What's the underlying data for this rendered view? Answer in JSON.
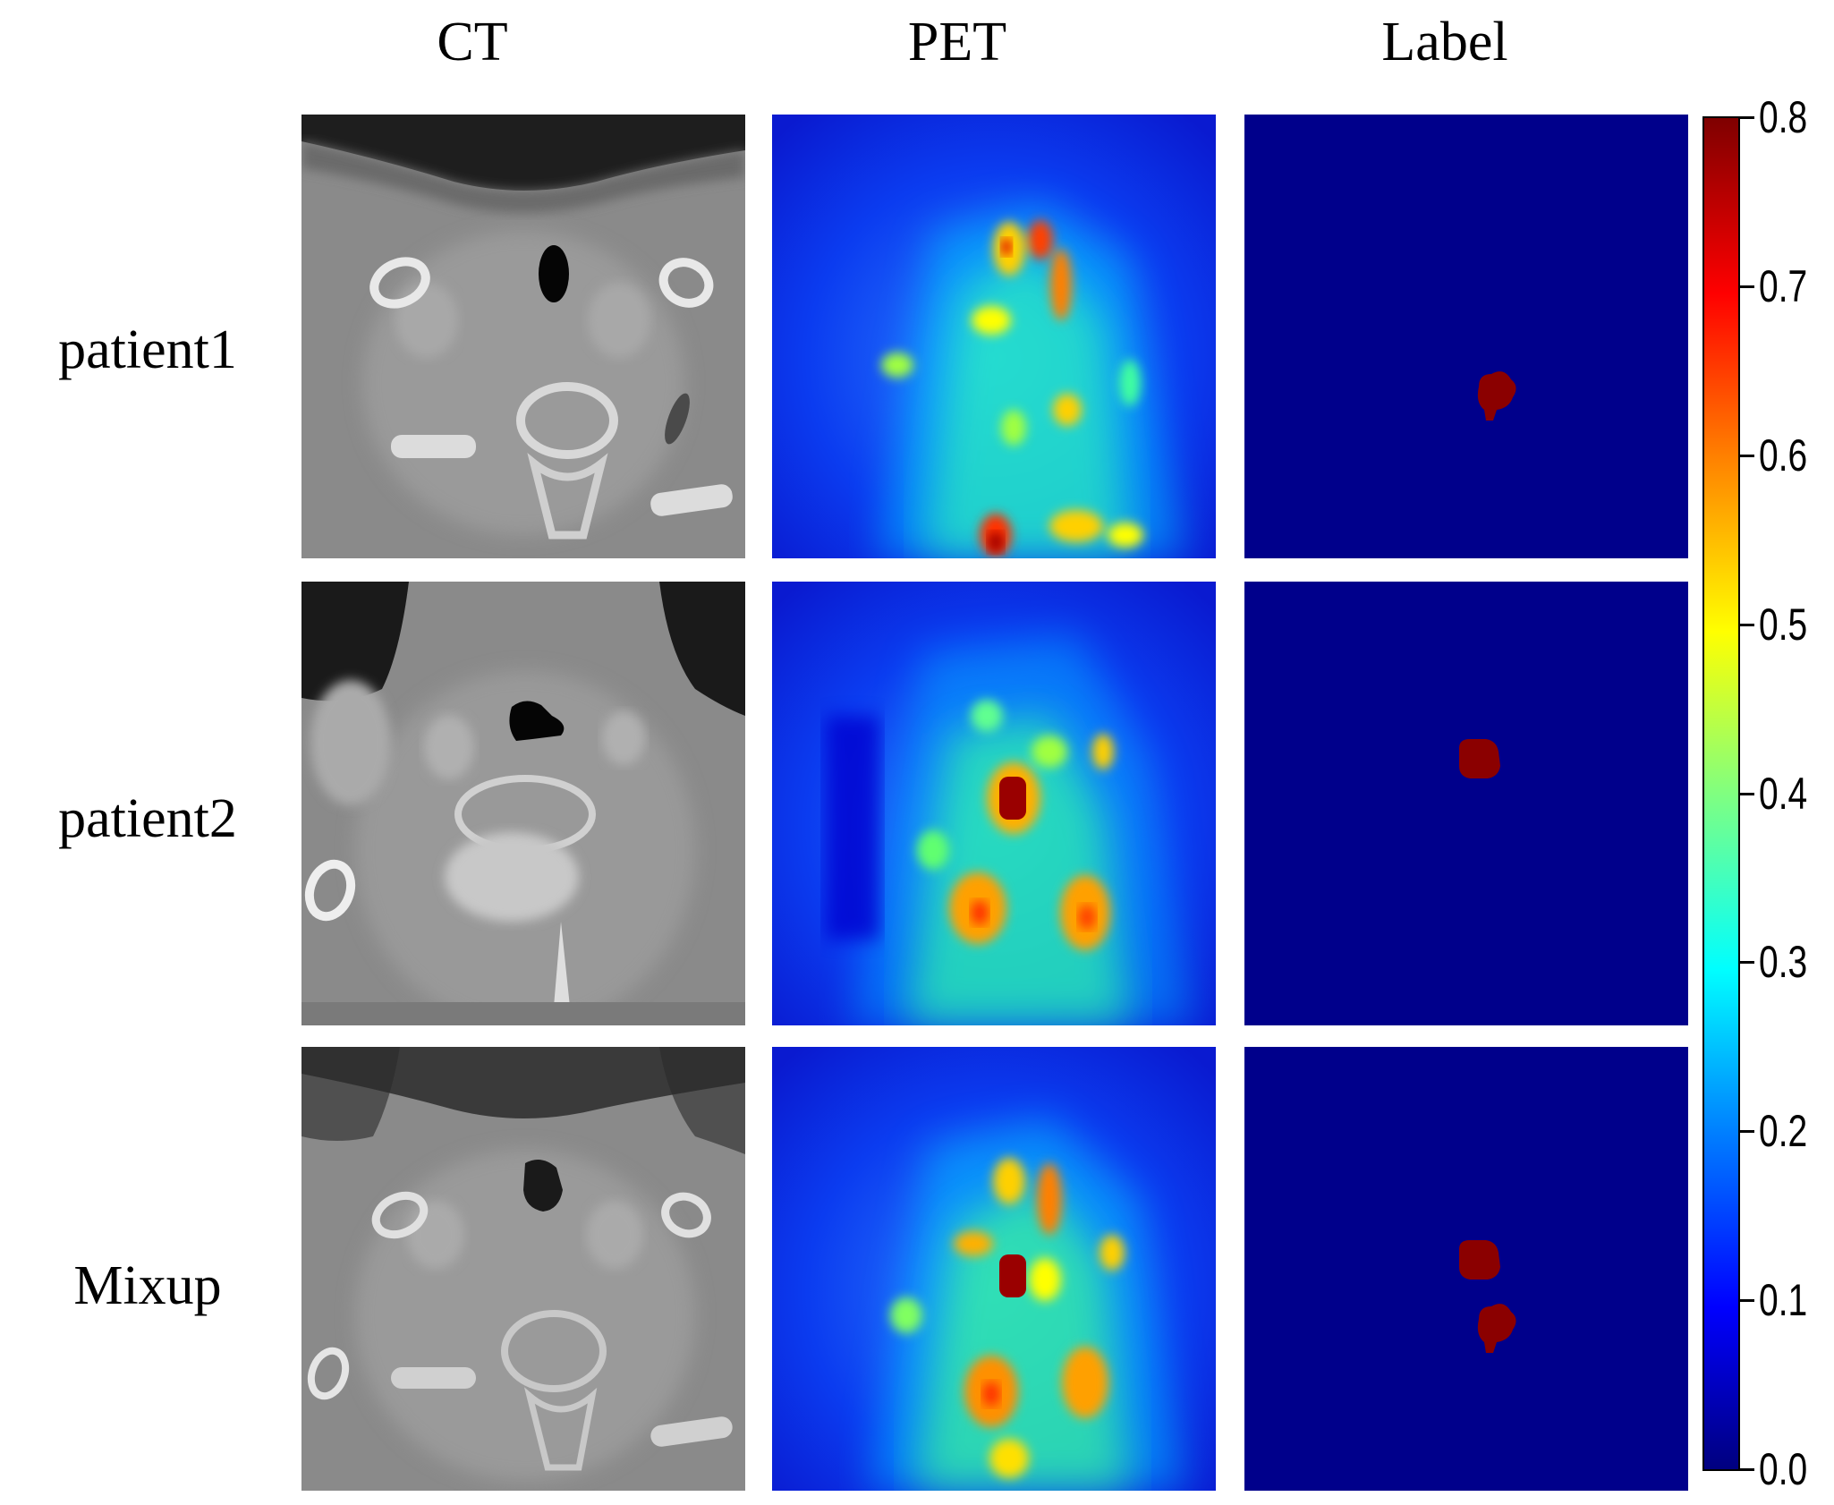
{
  "columns": [
    "CT",
    "PET",
    "Label"
  ],
  "rows": [
    "patient1",
    "patient2",
    "Mixup"
  ],
  "colorbar": {
    "ticks": [
      "0.8",
      "0.7",
      "0.6",
      "0.5",
      "0.4",
      "0.3",
      "0.2",
      "0.1",
      "0.0"
    ],
    "colormap": "jet",
    "range": [
      0.0,
      0.8
    ]
  },
  "colors": {
    "label_background": "#00008b",
    "label_lesion": "#8b0000",
    "ct_gray": "#8a8a8a"
  }
}
